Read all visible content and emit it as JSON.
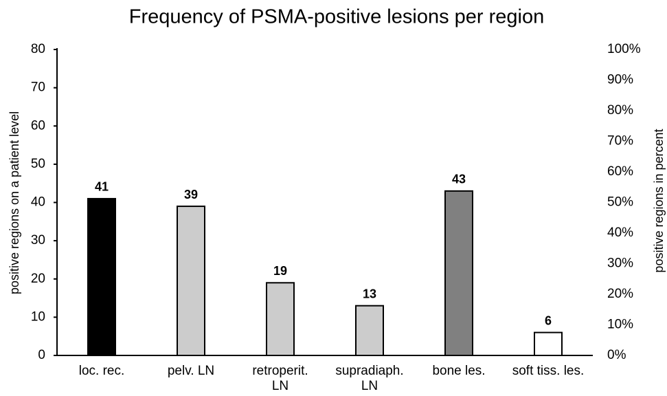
{
  "chart_data": {
    "type": "bar",
    "title": "Frequency of PSMA-positive lesions per region",
    "ylabel": "positive regions on a patient level",
    "y2label": "positive regions in percent",
    "categories": [
      "loc. rec.",
      "pelv. LN",
      "retroperit.\nLN",
      "supradiaph.\nLN",
      "bone les.",
      "soft tiss. les."
    ],
    "values": [
      41,
      39,
      19,
      13,
      43,
      6
    ],
    "colors": [
      "#000000",
      "#cccccc",
      "#cccccc",
      "#cccccc",
      "#808080",
      "#ffffff"
    ],
    "ylim": [
      0,
      80
    ],
    "yticks": [
      0,
      10,
      20,
      30,
      40,
      50,
      60,
      70,
      80
    ],
    "y2lim": [
      0,
      100
    ],
    "y2ticks": [
      {
        "value": 0,
        "label": "0%"
      },
      {
        "value": 10,
        "label": "10%"
      },
      {
        "value": 20,
        "label": "20%"
      },
      {
        "value": 30,
        "label": "30%"
      },
      {
        "value": 40,
        "label": "40%"
      },
      {
        "value": 50,
        "label": "50%"
      },
      {
        "value": 60,
        "label": "60%"
      },
      {
        "value": 70,
        "label": "70%"
      },
      {
        "value": 80,
        "label": "80%"
      },
      {
        "value": 90,
        "label": "90%"
      },
      {
        "value": 100,
        "label": "100%"
      }
    ],
    "grid": false
  }
}
